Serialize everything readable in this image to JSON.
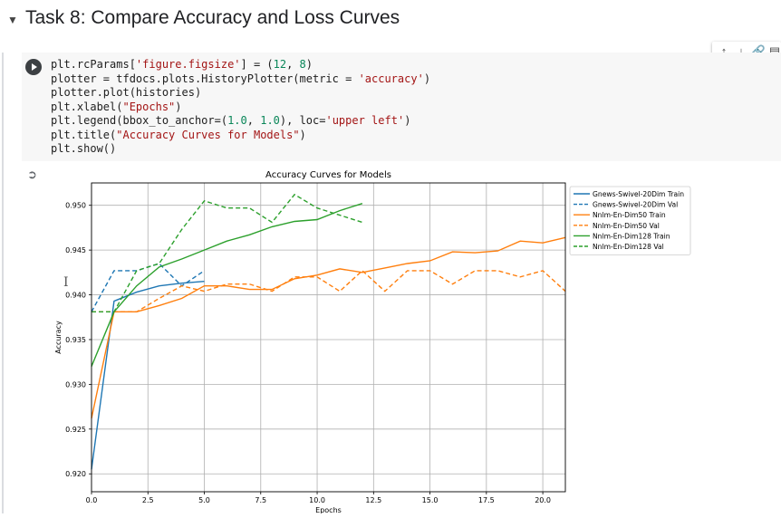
{
  "section": {
    "title": "Task 8: Compare Accuracy and Loss Curves",
    "collapse_icon": "triangle-down"
  },
  "cell_toolbar": {
    "icons": [
      "arrow-up",
      "arrow-down",
      "link",
      "comment"
    ]
  },
  "code": {
    "lines": [
      [
        [
          "plt.rcParams[",
          ""
        ],
        [
          "'figure.figsize'",
          "str"
        ],
        [
          "] = (",
          ""
        ],
        [
          "12",
          "num"
        ],
        [
          ", ",
          ""
        ],
        [
          "8",
          "num"
        ],
        [
          ")",
          ""
        ]
      ],
      [
        [
          "plotter = tfdocs.plots.HistoryPlotter(metric = ",
          ""
        ],
        [
          "'accuracy'",
          "str"
        ],
        [
          ")",
          ""
        ]
      ],
      [
        [
          "plotter.plot(histories)",
          ""
        ]
      ],
      [
        [
          "plt.xlabel(",
          ""
        ],
        [
          "\"Epochs\"",
          "str"
        ],
        [
          ")",
          ""
        ]
      ],
      [
        [
          "plt.legend(bbox_to_anchor=(",
          ""
        ],
        [
          "1.0",
          "num"
        ],
        [
          ", ",
          ""
        ],
        [
          "1.0",
          "num"
        ],
        [
          "), loc=",
          ""
        ],
        [
          "'upper left'",
          "str"
        ],
        [
          ")",
          ""
        ]
      ],
      [
        [
          "plt.title(",
          ""
        ],
        [
          "\"Accuracy Curves for Models\"",
          "str"
        ],
        [
          ")",
          ""
        ]
      ],
      [
        [
          "plt.show()",
          ""
        ]
      ]
    ]
  },
  "chart_data": {
    "type": "line",
    "title": "Accuracy Curves for Models",
    "xlabel": "Epochs",
    "ylabel": "Accuracy",
    "xlim": [
      0,
      21
    ],
    "ylim": [
      0.918,
      0.9525
    ],
    "xticks": [
      0,
      2.5,
      5,
      7.5,
      10,
      12.5,
      15,
      17.5,
      20
    ],
    "xtick_labels": [
      "0.0",
      "2.5",
      "5.0",
      "7.5",
      "10.0",
      "12.5",
      "15.0",
      "17.5",
      "20.0"
    ],
    "yticks": [
      0.92,
      0.925,
      0.93,
      0.935,
      0.94,
      0.945,
      0.95
    ],
    "ytick_labels": [
      "0.920",
      "0.925",
      "0.930",
      "0.935",
      "0.940",
      "0.945",
      "0.950"
    ],
    "grid": true,
    "legend_position": "outside upper left",
    "series": [
      {
        "name": "Gnews-Swivel-20Dim Train",
        "color": "#1f77b4",
        "dash": "solid",
        "x": [
          0,
          1,
          2,
          3,
          4,
          5
        ],
        "y": [
          0.9205,
          0.9393,
          0.9403,
          0.941,
          0.9413,
          0.9415
        ]
      },
      {
        "name": "Gnews-Swivel-20Dim Val",
        "color": "#1f77b4",
        "dash": "dashed",
        "x": [
          0,
          1,
          2,
          3,
          4,
          5
        ],
        "y": [
          0.9381,
          0.9427,
          0.9427,
          0.9435,
          0.941,
          0.9427
        ]
      },
      {
        "name": "Nnlm-En-Dim50 Train",
        "color": "#ff7f0e",
        "dash": "solid",
        "x": [
          0,
          1,
          2,
          3,
          4,
          5,
          6,
          7,
          8,
          9,
          10,
          11,
          12,
          13,
          14,
          15,
          16,
          17,
          18,
          19,
          20,
          21
        ],
        "y": [
          0.9262,
          0.9381,
          0.9381,
          0.9388,
          0.9396,
          0.941,
          0.941,
          0.9406,
          0.9406,
          0.9418,
          0.9422,
          0.9429,
          0.9425,
          0.943,
          0.9435,
          0.9438,
          0.9448,
          0.9447,
          0.9449,
          0.946,
          0.9458,
          0.9464
        ]
      },
      {
        "name": "Nnlm-En-Dim50 Val",
        "color": "#ff7f0e",
        "dash": "dashed",
        "x": [
          0,
          1,
          2,
          3,
          4,
          5,
          6,
          7,
          8,
          9,
          10,
          11,
          12,
          13,
          14,
          15,
          16,
          17,
          18,
          19,
          20,
          21
        ],
        "y": [
          0.9381,
          0.9381,
          0.9381,
          0.9396,
          0.941,
          0.9404,
          0.9412,
          0.9412,
          0.9404,
          0.942,
          0.942,
          0.9404,
          0.9427,
          0.9404,
          0.9427,
          0.9427,
          0.9412,
          0.9427,
          0.9427,
          0.942,
          0.9427,
          0.9404
        ]
      },
      {
        "name": "Nnlm-En-Dim128 Train",
        "color": "#2ca02c",
        "dash": "solid",
        "x": [
          0,
          1,
          2,
          3,
          4,
          5,
          6,
          7,
          8,
          9,
          10,
          11,
          12
        ],
        "y": [
          0.932,
          0.9381,
          0.941,
          0.9431,
          0.944,
          0.945,
          0.946,
          0.9467,
          0.9476,
          0.9482,
          0.9484,
          0.9494,
          0.9502
        ]
      },
      {
        "name": "Nnlm-En-Dim128 Val",
        "color": "#2ca02c",
        "dash": "dashed",
        "x": [
          0,
          1,
          2,
          3,
          4,
          5,
          6,
          7,
          8,
          9,
          10,
          11,
          12
        ],
        "y": [
          0.9381,
          0.9381,
          0.9427,
          0.9435,
          0.9473,
          0.9505,
          0.9497,
          0.9497,
          0.9481,
          0.9512,
          0.9497,
          0.9489,
          0.9481
        ]
      }
    ]
  }
}
